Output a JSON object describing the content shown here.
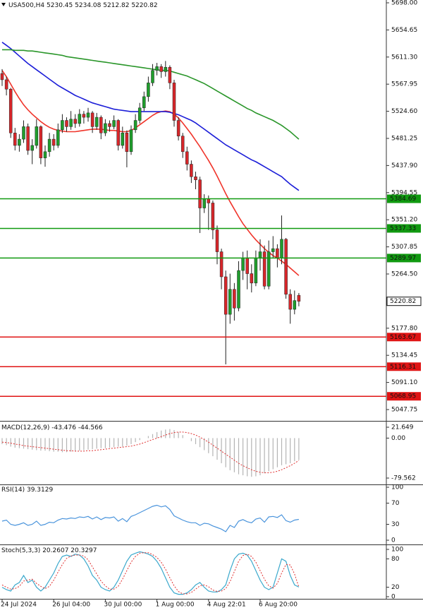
{
  "chart_data": [
    {
      "type": "candlestick",
      "title": "USA500,H4",
      "categories": [
        "24 Jul 2024",
        null,
        null,
        null,
        null,
        null,
        null,
        null,
        null,
        null,
        null,
        null,
        "26 Jul 04:00",
        null,
        null,
        null,
        null,
        null,
        null,
        null,
        null,
        null,
        null,
        null,
        "30 Jul 00:00",
        null,
        null,
        null,
        null,
        null,
        null,
        null,
        null,
        null,
        null,
        null,
        "1 Aug 00:00",
        null,
        null,
        null,
        null,
        null,
        null,
        null,
        null,
        null,
        null,
        null,
        "4 Aug 22:01",
        null,
        null,
        null,
        null,
        null,
        null,
        null,
        null,
        null,
        null,
        null,
        "6 Aug 20:00",
        null,
        null,
        null,
        null,
        null,
        null,
        null,
        null,
        null
      ],
      "open": [
        5585,
        5575,
        5560,
        5490,
        5470,
        5480,
        5500,
        5462,
        5470,
        5500,
        5450,
        5460,
        5480,
        5470,
        5495,
        5510,
        5500,
        5512,
        5505,
        5520,
        5515,
        5522,
        5500,
        5515,
        5490,
        5505,
        5500,
        5510,
        5470,
        5490,
        5460,
        5495,
        5510,
        5530,
        5548,
        5570,
        5590,
        5596,
        5588,
        5595,
        5570,
        5510,
        5485,
        5460,
        5440,
        5420,
        5415,
        5370,
        5385,
        5378,
        5335,
        5300,
        5260,
        5200,
        5240,
        5210,
        5270,
        5290,
        5265,
        5250,
        5290,
        5300,
        5245,
        5300,
        5305,
        5290,
        5320,
        5232,
        5208,
        5230.45
      ],
      "high": [
        5592,
        5580,
        5562,
        5498,
        5488,
        5510,
        5505,
        5480,
        5512,
        5502,
        5470,
        5490,
        5488,
        5505,
        5520,
        5515,
        5525,
        5520,
        5528,
        5525,
        5530,
        5525,
        5522,
        5518,
        5512,
        5510,
        5518,
        5512,
        5500,
        5494,
        5502,
        5520,
        5538,
        5556,
        5580,
        5600,
        5602,
        5600,
        5605,
        5598,
        5575,
        5515,
        5490,
        5468,
        5446,
        5428,
        5420,
        5392,
        5390,
        5382,
        5342,
        5305,
        5270,
        5265,
        5250,
        5285,
        5300,
        5302,
        5280,
        5302,
        5320,
        5310,
        5318,
        5325,
        5312,
        5358,
        5322,
        5240,
        5238,
        5234.08
      ],
      "low": [
        5565,
        5550,
        5482,
        5462,
        5460,
        5474,
        5455,
        5440,
        5465,
        5440,
        5436,
        5452,
        5462,
        5466,
        5490,
        5492,
        5495,
        5498,
        5500,
        5505,
        5508,
        5490,
        5495,
        5480,
        5485,
        5492,
        5496,
        5462,
        5465,
        5435,
        5455,
        5490,
        5505,
        5525,
        5540,
        5565,
        5582,
        5578,
        5580,
        5560,
        5500,
        5478,
        5450,
        5430,
        5410,
        5400,
        5330,
        5362,
        5335,
        5320,
        5280,
        5240,
        5120,
        5185,
        5190,
        5205,
        5255,
        5240,
        5235,
        5245,
        5270,
        5240,
        5240,
        5290,
        5275,
        5280,
        5225,
        5185,
        5200,
        5212.82
      ],
      "close": [
        5575,
        5560,
        5490,
        5470,
        5480,
        5500,
        5462,
        5470,
        5500,
        5450,
        5460,
        5480,
        5470,
        5495,
        5510,
        5500,
        5512,
        5505,
        5520,
        5515,
        5522,
        5500,
        5515,
        5490,
        5505,
        5500,
        5510,
        5470,
        5490,
        5460,
        5495,
        5510,
        5530,
        5548,
        5570,
        5590,
        5596,
        5588,
        5595,
        5570,
        5510,
        5485,
        5460,
        5440,
        5420,
        5415,
        5370,
        5385,
        5378,
        5335,
        5300,
        5260,
        5200,
        5240,
        5210,
        5270,
        5290,
        5265,
        5250,
        5290,
        5300,
        5245,
        5300,
        5305,
        5290,
        5320,
        5232,
        5208,
        5222,
        5220.82
      ],
      "up_color": "#1f9e2c",
      "down_color": "#d8262a",
      "wick_color": "#222222",
      "overlays": [
        {
          "color": "#f0342a",
          "values": [
            5590,
            5580,
            5568,
            5556,
            5545,
            5535,
            5527,
            5520,
            5514,
            5508,
            5503,
            5499,
            5496,
            5494,
            5493,
            5492,
            5492,
            5492,
            5493,
            5494,
            5495,
            5496,
            5496,
            5496,
            5495,
            5494,
            5494,
            5493,
            5492,
            5492,
            5494,
            5498,
            5503,
            5508,
            5513,
            5518,
            5522,
            5524,
            5525,
            5524,
            5520,
            5514,
            5506,
            5497,
            5488,
            5478,
            5468,
            5457,
            5446,
            5434,
            5421,
            5407,
            5393,
            5380,
            5368,
            5356,
            5345,
            5336,
            5327,
            5319,
            5312,
            5305,
            5299,
            5294,
            5290,
            5285,
            5280,
            5274,
            5268,
            5262
          ]
        },
        {
          "color": "#1c1ed8",
          "values": [
            5635,
            5630,
            5625,
            5619,
            5613,
            5607,
            5601,
            5596,
            5591,
            5586,
            5581,
            5576,
            5571,
            5566,
            5562,
            5558,
            5554,
            5550,
            5547,
            5544,
            5541,
            5538,
            5536,
            5534,
            5532,
            5530,
            5528,
            5527,
            5526,
            5525,
            5524,
            5524,
            5524,
            5524,
            5524,
            5524,
            5524,
            5524,
            5524,
            5523,
            5521,
            5519,
            5516,
            5513,
            5510,
            5506,
            5501,
            5496,
            5491,
            5486,
            5481,
            5476,
            5471,
            5467,
            5463,
            5459,
            5455,
            5451,
            5447,
            5444,
            5440,
            5436,
            5432,
            5428,
            5424,
            5420,
            5414,
            5408,
            5403,
            5398
          ]
        },
        {
          "color": "#2a962a",
          "values": [
            5623,
            5623,
            5623,
            5622,
            5622,
            5622,
            5621,
            5621,
            5620,
            5619,
            5618,
            5617,
            5616,
            5615,
            5614,
            5612,
            5611,
            5610,
            5609,
            5608,
            5607,
            5606,
            5605,
            5604,
            5603,
            5602,
            5601,
            5600,
            5599,
            5598,
            5597,
            5596,
            5595,
            5594,
            5593,
            5592,
            5591,
            5590,
            5590,
            5589,
            5587,
            5585,
            5583,
            5581,
            5578,
            5575,
            5572,
            5569,
            5565,
            5561,
            5557,
            5553,
            5549,
            5545,
            5541,
            5537,
            5533,
            5529,
            5526,
            5522,
            5519,
            5516,
            5513,
            5510,
            5506,
            5502,
            5497,
            5492,
            5486,
            5480
          ]
        }
      ],
      "levels": [
        {
          "value": 5384.69,
          "color": "#109a10"
        },
        {
          "value": 5337.33,
          "color": "#109a10"
        },
        {
          "value": 5289.97,
          "color": "#109a10"
        },
        {
          "value": 5163.67,
          "color": "#e01414"
        },
        {
          "value": 5116.31,
          "color": "#e01414"
        },
        {
          "value": 5068.95,
          "color": "#e01414"
        }
      ],
      "ylim": [
        5030.8,
        5702.5
      ],
      "yticks": [
        {
          "value": 5698,
          "label": "5698.00"
        },
        5654.65,
        {
          "value": 5611.3,
          "label": "5611.30"
        },
        5567.95,
        {
          "value": 5524.6,
          "label": "5524.60"
        },
        5481.25,
        {
          "value": 5437.9,
          "label": "5437.90"
        },
        5394.55,
        {
          "value": 5351.2,
          "label": "5351.20"
        },
        5307.85,
        {
          "value": 5264.5,
          "label": "5264.50"
        },
        {
          "value": 5177.8,
          "label": "5177.80"
        },
        5134.45,
        {
          "value": 5091.1,
          "label": "5091.10"
        },
        5047.75
      ]
    },
    {
      "type": "macd",
      "title": "MACD(12,26,9)",
      "histogram": {
        "color": "#b4b4b4",
        "values": [
          -12,
          -14,
          -17,
          -19,
          -20,
          -21,
          -22,
          -23,
          -24,
          -25,
          -25,
          -26,
          -27,
          -27,
          -28,
          -28,
          -27,
          -26,
          -25,
          -24,
          -23,
          -22,
          -21,
          -20,
          -20,
          -19,
          -18,
          -17,
          -17,
          -15,
          -12,
          -8,
          -4,
          0,
          4,
          8,
          12,
          15,
          17,
          18,
          16,
          12,
          6,
          0,
          -6,
          -12,
          -18,
          -24,
          -30,
          -36,
          -43,
          -50,
          -58,
          -64,
          -68,
          -72,
          -74,
          -76,
          -77,
          -76,
          -74,
          -70,
          -66,
          -62,
          -58,
          -54,
          -52,
          -50,
          -46,
          -43.476
        ]
      },
      "signal": {
        "color": "#e03030",
        "values": [
          -8,
          -9,
          -10,
          -12,
          -13,
          -15,
          -16,
          -17,
          -18,
          -19,
          -20,
          -21,
          -22,
          -23,
          -24,
          -25,
          -25,
          -26,
          -26,
          -26,
          -25,
          -25,
          -24,
          -23,
          -22,
          -21,
          -20,
          -19,
          -18,
          -17,
          -16,
          -14,
          -12,
          -9,
          -6,
          -3,
          0,
          3,
          6,
          9,
          11,
          12,
          12,
          11,
          9,
          6,
          2,
          -3,
          -8,
          -14,
          -20,
          -26,
          -32,
          -38,
          -44,
          -50,
          -55,
          -59,
          -63,
          -66,
          -68,
          -69,
          -69,
          -68,
          -66,
          -63,
          -59,
          -55,
          -50,
          -44.566
        ]
      },
      "ylim": [
        -92.2,
        31.5
      ],
      "yticks": [
        21.649,
        {
          "value": 0,
          "label": "0.00"
        },
        -79.562
      ]
    },
    {
      "type": "line",
      "title": "RSI(14)",
      "color": "#4a94dc",
      "values": [
        36,
        38,
        30,
        28,
        30,
        33,
        28,
        30,
        36,
        28,
        30,
        34,
        33,
        38,
        41,
        40,
        42,
        41,
        44,
        43,
        45,
        40,
        44,
        39,
        43,
        42,
        44,
        36,
        41,
        35,
        45,
        48,
        52,
        56,
        60,
        64,
        66,
        63,
        65,
        58,
        46,
        42,
        38,
        35,
        33,
        33,
        28,
        32,
        31,
        27,
        24,
        21,
        16,
        28,
        24,
        36,
        39,
        35,
        33,
        40,
        42,
        34,
        44,
        45,
        43,
        48,
        37,
        34,
        38,
        39.3129
      ],
      "ylim": [
        0,
        100
      ],
      "yticks": [
        100,
        70,
        30,
        0
      ]
    },
    {
      "type": "stochastic",
      "title": "Stoch(5,3,3)",
      "k": {
        "color": "#3aa8cc",
        "values": [
          20,
          15,
          12,
          25,
          30,
          45,
          30,
          35,
          20,
          12,
          20,
          35,
          50,
          70,
          85,
          88,
          85,
          90,
          88,
          80,
          65,
          45,
          35,
          20,
          15,
          12,
          20,
          35,
          55,
          75,
          88,
          92,
          95,
          93,
          90,
          85,
          75,
          60,
          40,
          20,
          8,
          5,
          5,
          8,
          15,
          25,
          30,
          20,
          12,
          10,
          10,
          15,
          25,
          55,
          80,
          90,
          92,
          88,
          75,
          55,
          35,
          20,
          15,
          20,
          50,
          80,
          75,
          45,
          25,
          20.2607
        ]
      },
      "d": {
        "color": "#e03030",
        "values": [
          25,
          20,
          16,
          17,
          22,
          33,
          35,
          37,
          28,
          22,
          17,
          22,
          35,
          52,
          68,
          81,
          86,
          88,
          88,
          86,
          78,
          63,
          48,
          33,
          23,
          16,
          16,
          22,
          37,
          55,
          73,
          85,
          92,
          93,
          93,
          89,
          83,
          73,
          58,
          40,
          23,
          11,
          6,
          6,
          9,
          16,
          23,
          25,
          21,
          14,
          11,
          12,
          17,
          32,
          53,
          75,
          87,
          90,
          85,
          73,
          55,
          37,
          23,
          18,
          28,
          50,
          68,
          67,
          48,
          20.3297
        ]
      },
      "ylim": [
        0,
        100
      ],
      "yticks": [
        100,
        80,
        20,
        0
      ]
    }
  ]
}
